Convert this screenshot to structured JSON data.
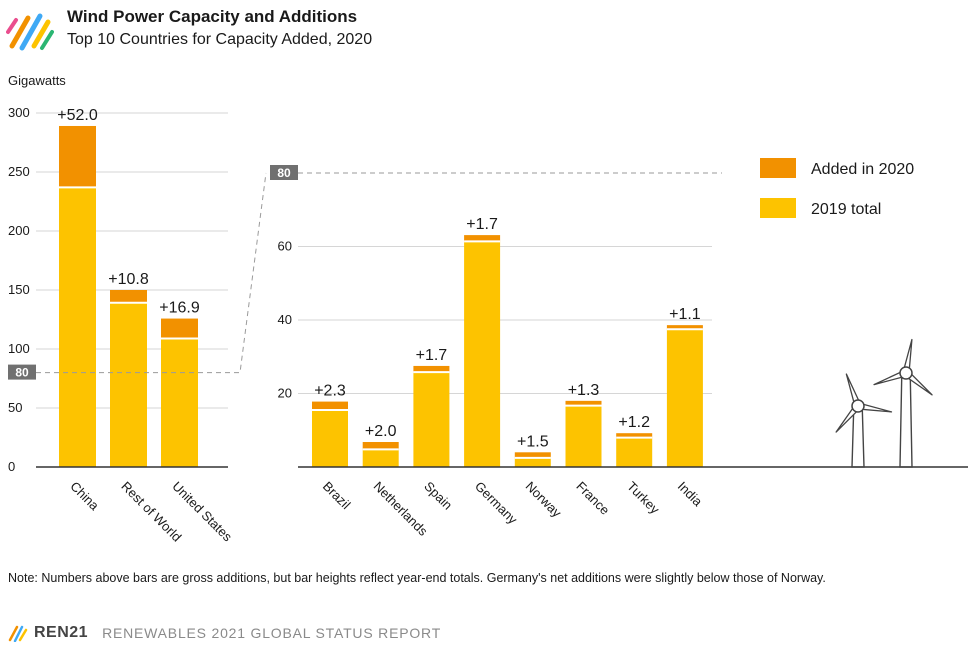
{
  "header": {
    "title": "Wind Power Capacity and Additions",
    "subtitle": "Top 10 Countries for Capacity Added, 2020"
  },
  "note": "Note: Numbers above bars are gross additions, but bar heights reflect year-end totals. Germany's net additions were slightly below those of Norway.",
  "footer": {
    "org": "REN21",
    "report": "RENEWABLES 2021 GLOBAL STATUS REPORT"
  },
  "colors": {
    "added": "#F29100",
    "base": "#FDC300",
    "axis": "#333333",
    "marker": "#707070"
  },
  "chart_data": [
    {
      "type": "bar",
      "stacked": true,
      "ylabel": "Gigawatts",
      "ylim": [
        0,
        300
      ],
      "yticks": [
        0,
        50,
        100,
        150,
        200,
        250,
        300
      ],
      "marker_value": 80,
      "marker_label": "80",
      "categories": [
        "China",
        "Rest of World",
        "United States"
      ],
      "series": [
        {
          "name": "2019 total",
          "values": [
            237.0,
            139.2,
            108.9
          ]
        },
        {
          "name": "Added in 2020",
          "values": [
            52.0,
            10.8,
            16.9
          ]
        }
      ],
      "labels": [
        "+52.0",
        "+10.8",
        "+16.9"
      ]
    },
    {
      "type": "bar",
      "stacked": true,
      "ylim": [
        0,
        80
      ],
      "yticks": [
        20,
        40,
        60
      ],
      "marker_label": "80",
      "categories": [
        "Brazil",
        "Netherlands",
        "Spain",
        "Germany",
        "Norway",
        "France",
        "Turkey",
        "India"
      ],
      "series": [
        {
          "name": "2019 total",
          "values": [
            15.5,
            4.8,
            25.8,
            61.4,
            2.5,
            16.7,
            8.0,
            37.5
          ]
        },
        {
          "name": "Added in 2020",
          "values": [
            2.3,
            2.0,
            1.7,
            1.7,
            1.5,
            1.3,
            1.2,
            1.1
          ]
        }
      ],
      "labels": [
        "+2.3",
        "+2.0",
        "+1.7",
        "+1.7",
        "+1.5",
        "+1.3",
        "+1.2",
        "+1.1"
      ],
      "legend": {
        "position": "top-right",
        "entries": [
          "Added in 2020",
          "2019 total"
        ]
      }
    }
  ]
}
